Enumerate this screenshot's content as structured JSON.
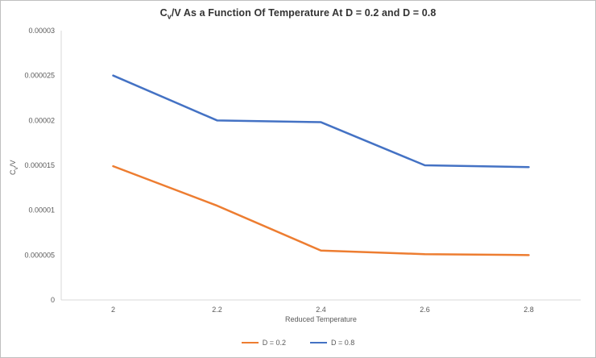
{
  "chart_data": {
    "type": "line",
    "title": "Cv/V As a Function Of Temperature At D = 0.2 and D = 0.8",
    "title_parts": {
      "pre": "C",
      "sub": "v",
      "post": "/V As a Function Of Temperature At D = 0.2 and D = 0.8"
    },
    "xlabel": "Reduced Temperature",
    "ylabel": "Cv/V",
    "ylabel_parts": {
      "pre": "C",
      "sub": "v",
      "post": "/V"
    },
    "x": [
      2,
      2.2,
      2.4,
      2.6,
      2.8
    ],
    "series": [
      {
        "name": "D = 0.2",
        "color": "#ED7D31",
        "values": [
          1.49e-05,
          1.05e-05,
          5.5e-06,
          5.1e-06,
          5e-06
        ]
      },
      {
        "name": "D = 0.8",
        "color": "#4472C4",
        "values": [
          2.5e-05,
          2e-05,
          1.98e-05,
          1.5e-05,
          1.48e-05
        ]
      }
    ],
    "xlim": [
      1.9,
      2.9
    ],
    "ylim": [
      0,
      3e-05
    ],
    "y_ticks": [
      0,
      5e-06,
      1e-05,
      1.5e-05,
      2e-05,
      2.5e-05,
      3e-05
    ],
    "y_tick_labels": [
      "0",
      "0.000005",
      "0.00001",
      "0.000015",
      "0.00002",
      "0.000025",
      "0.00003"
    ],
    "x_ticks": [
      2,
      2.2,
      2.4,
      2.6,
      2.8
    ],
    "x_tick_labels": [
      "2",
      "2.2",
      "2.4",
      "2.6",
      "2.8"
    ],
    "grid": false,
    "legend_position": "bottom",
    "text_color": "#595959",
    "axis_color": "#d9d9d9"
  }
}
